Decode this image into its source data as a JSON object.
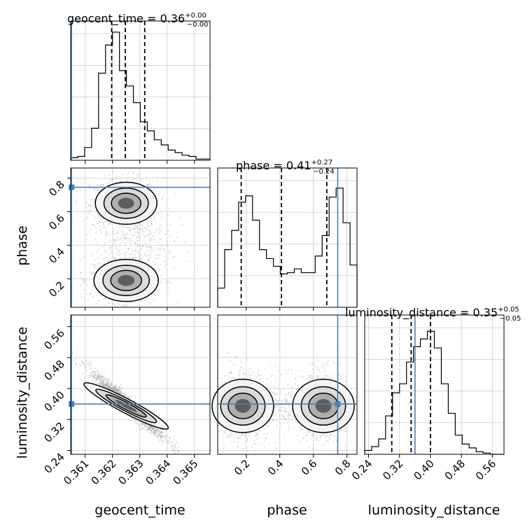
{
  "chart_data": {
    "type": "corner",
    "parameters": [
      "geocent_time",
      "phase",
      "luminosity_distance"
    ],
    "ranges": {
      "geocent_time": [
        0.36047,
        0.36557
      ],
      "phase": [
        0.03,
        0.86
      ],
      "luminosity_distance": [
        0.23,
        0.59
      ]
    },
    "truths": {
      "geocent_time": 0.3605,
      "phase": 0.745,
      "luminosity_distance": 0.36
    },
    "titles": {
      "geocent_time": {
        "name": "geocent_time",
        "median": "0.36",
        "plus": "+0.00",
        "minus": "−0.00"
      },
      "phase": {
        "name": "phase",
        "median": "0.41",
        "plus": "+0.27",
        "minus": "−0.24"
      },
      "luminosity_distance": {
        "name": "luminosity_distance",
        "median": "0.35",
        "plus": "+0.05",
        "minus": "−0.05"
      }
    },
    "title_labels": [
      "geocent_time = 0.36",
      "phase = 0.41",
      "luminosity_distance = 0.35"
    ],
    "ticks": {
      "geocent_time": [
        "0.361",
        "0.362",
        "0.363",
        "0.364",
        "0.365"
      ],
      "phase": [
        "0.2",
        "0.4",
        "0.6",
        "0.8"
      ],
      "luminosity_distance": [
        "0.24",
        "0.32",
        "0.40",
        "0.48",
        "0.56"
      ]
    },
    "quantiles": {
      "geocent_time": [
        0.36197,
        0.36247,
        0.36318
      ],
      "phase": [
        0.17,
        0.41,
        0.68
      ],
      "luminosity_distance": [
        0.3,
        0.35,
        0.4
      ]
    },
    "histograms": {
      "geocent_time": [
        0.02,
        0.03,
        0.1,
        0.25,
        0.68,
        0.9,
        1.0,
        0.7,
        0.58,
        0.45,
        0.3,
        0.23,
        0.16,
        0.12,
        0.08,
        0.06,
        0.04,
        0.03,
        0.01,
        0.01
      ],
      "phase": [
        0.15,
        0.45,
        0.6,
        0.82,
        0.87,
        0.68,
        0.45,
        0.38,
        0.32,
        0.26,
        0.27,
        0.3,
        0.27,
        0.27,
        0.4,
        0.56,
        0.86,
        0.93,
        0.66,
        0.33
      ],
      "luminosity_distance": [
        0.03,
        0.06,
        0.12,
        0.3,
        0.48,
        0.55,
        0.72,
        0.84,
        0.9,
        0.96,
        0.83,
        0.55,
        0.32,
        0.15,
        0.08,
        0.05,
        0.02,
        0.01,
        0.0,
        0.0
      ]
    },
    "grid": true,
    "colors": {
      "truth": "#4682b4",
      "hist": "#000000",
      "points": "#9a9a9a",
      "contour": "#000000"
    }
  }
}
